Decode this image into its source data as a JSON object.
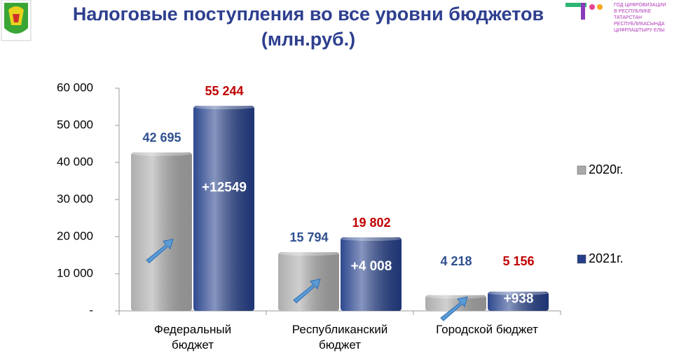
{
  "title": "Налоговые поступления во все уровни бюджетов (млн.руб.)",
  "logo_text": [
    "ГОД ЦИФРОВИЗАЦИИ",
    "В РЕСПУБЛИКЕ",
    "ТАТАРСТАН",
    "РЕСПУБЛИКАСЫНДА",
    "ЦИФРЛАШТЫРУ ЕЛЫ"
  ],
  "chart_data": {
    "type": "bar",
    "categories": [
      "Федеральный\nбюджет",
      "Республиканский\nбюджет",
      "Городской бюджет"
    ],
    "series": [
      {
        "name": "2020г.",
        "color": "#a9a9a9",
        "values": [
          42695,
          15794,
          4218
        ],
        "value_labels": [
          "42 695",
          "15 794",
          "4 218"
        ],
        "label_color": "#2e4f8f"
      },
      {
        "name": "2021г.",
        "color": "#243f8a",
        "values": [
          55244,
          19802,
          5156
        ],
        "value_labels": [
          "55 244",
          "19 802",
          "5 156"
        ],
        "label_color": "#c00000"
      }
    ],
    "annotations": [
      "+12549",
      "+4 008",
      "+938"
    ],
    "ylim": [
      0,
      60000
    ],
    "yticks": [
      {
        "value": 0,
        "label": "-"
      },
      {
        "value": 10000,
        "label": "10 000"
      },
      {
        "value": 20000,
        "label": "20 000"
      },
      {
        "value": 30000,
        "label": "30 000"
      },
      {
        "value": 40000,
        "label": "40 000"
      },
      {
        "value": 50000,
        "label": "50 000"
      },
      {
        "value": 60000,
        "label": "60 000"
      }
    ],
    "legend": "right"
  }
}
